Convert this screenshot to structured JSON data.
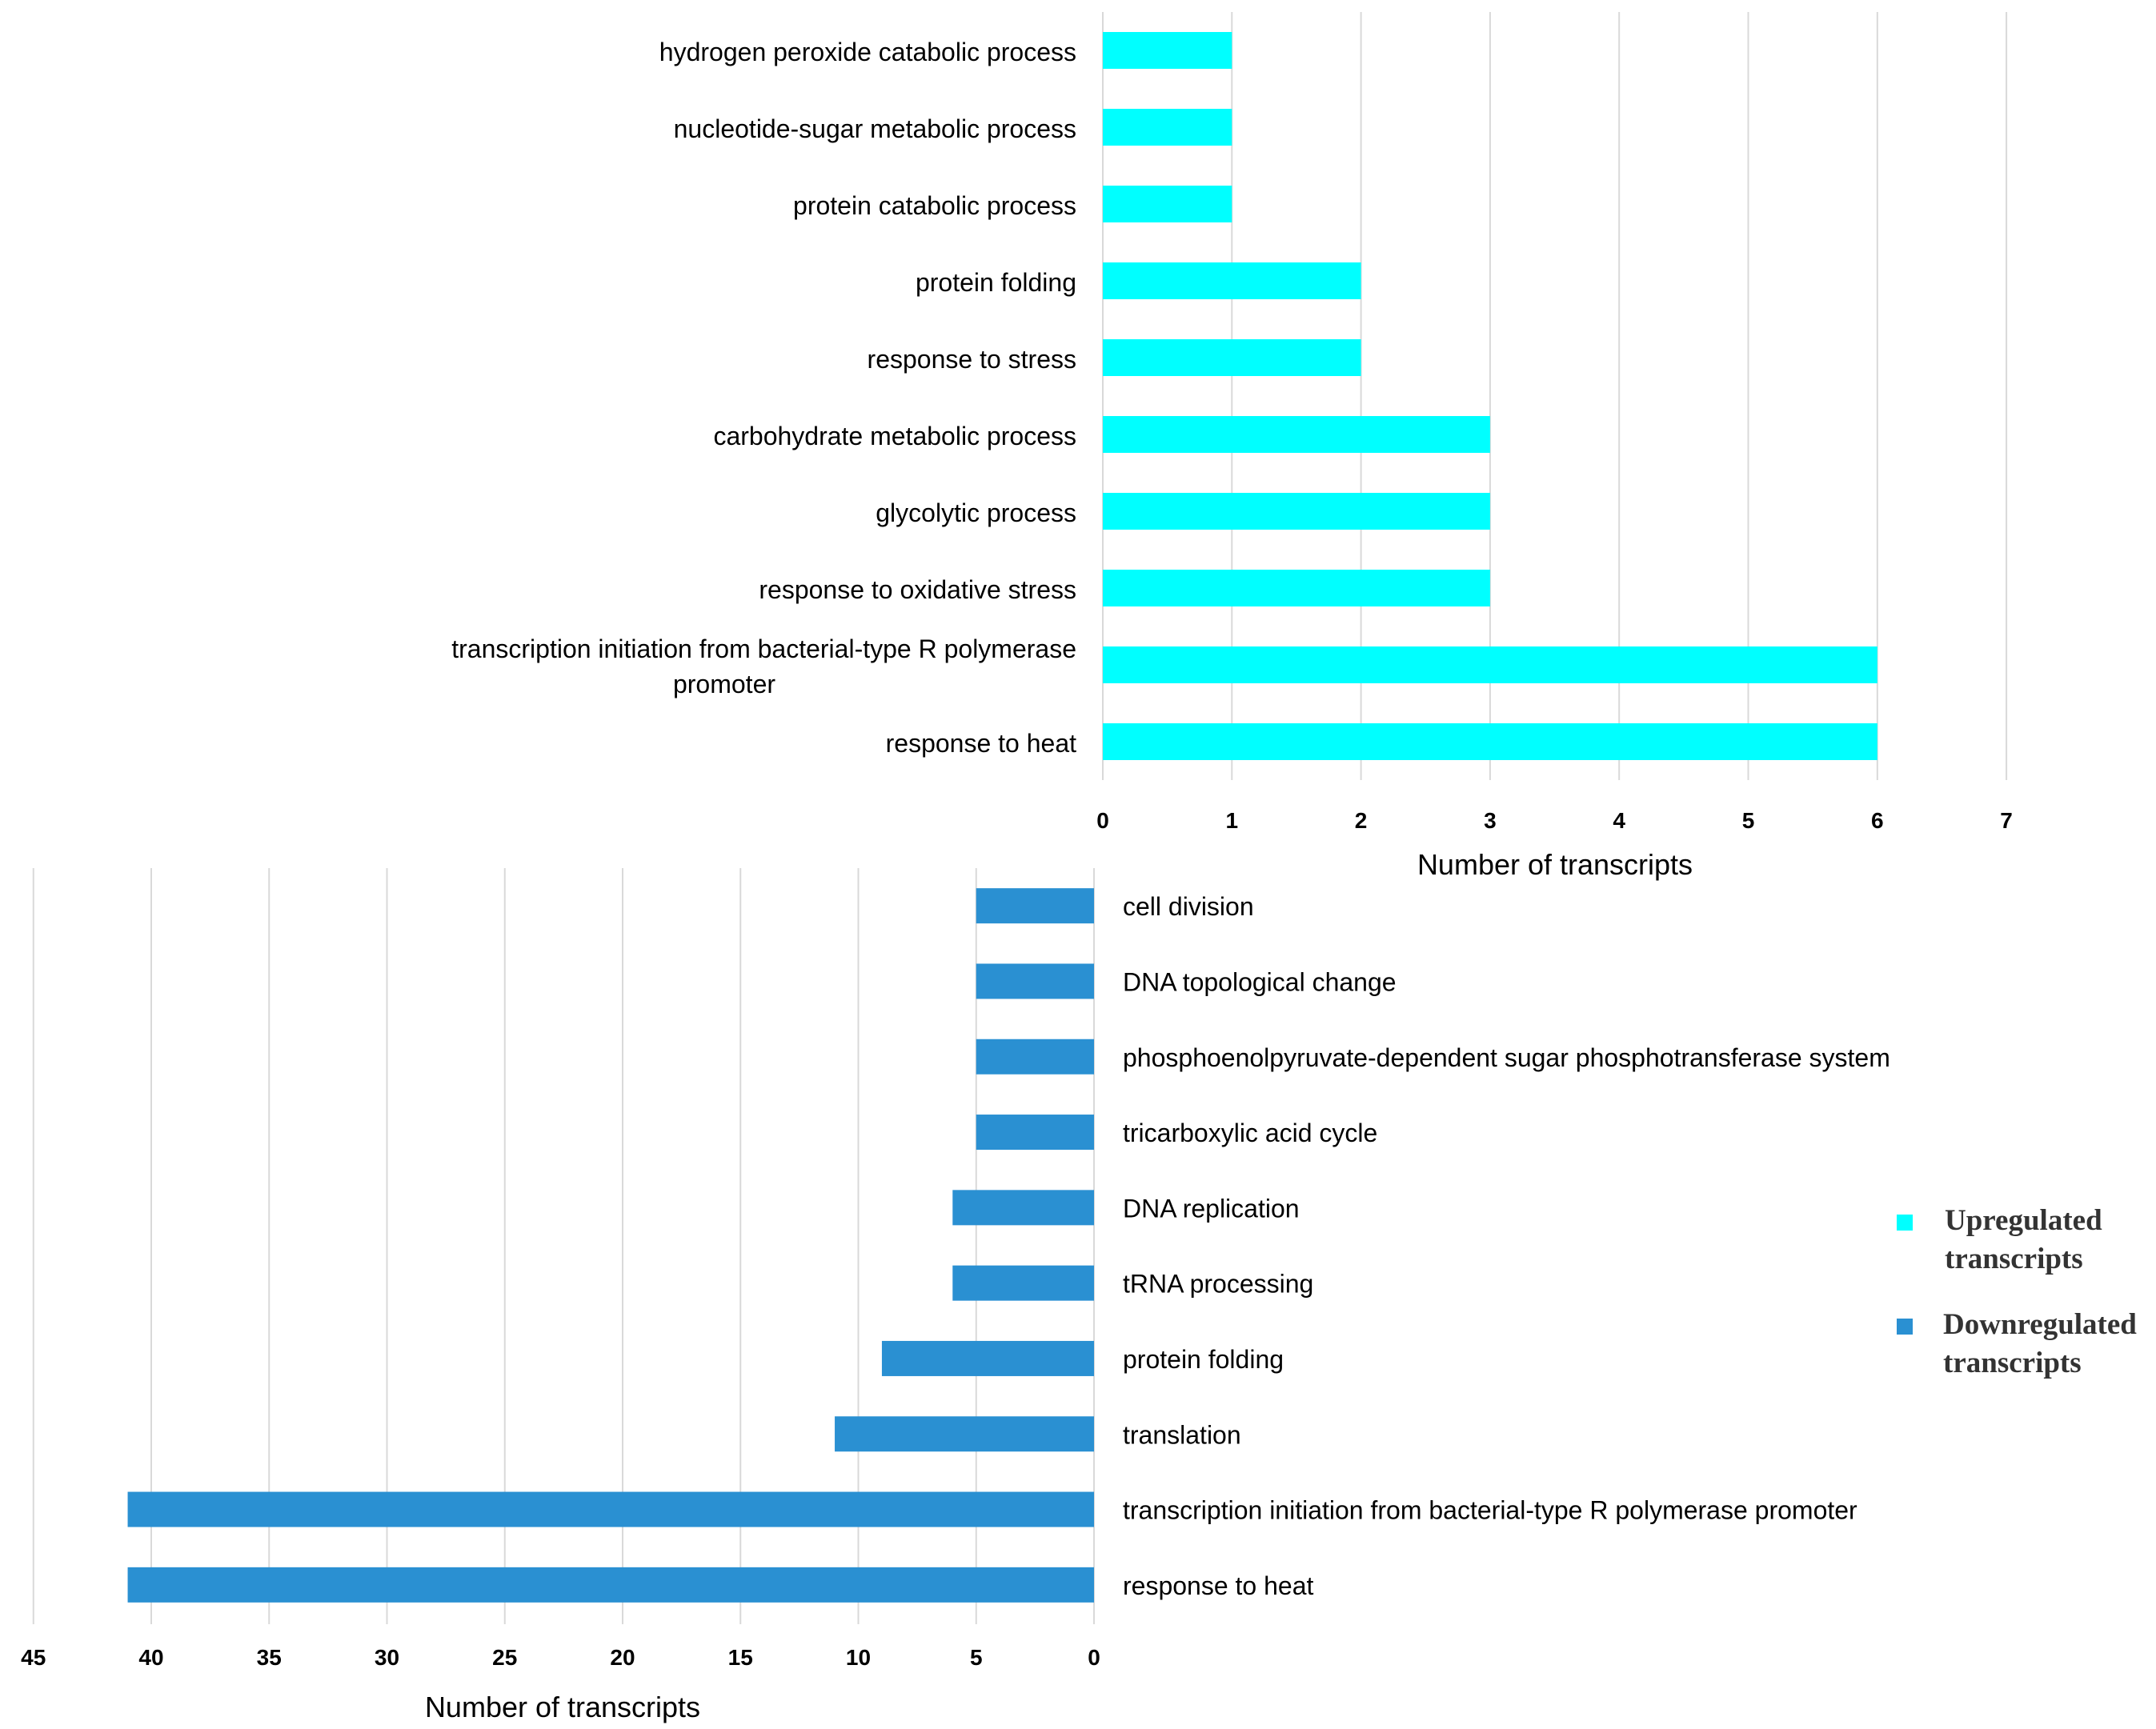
{
  "colors": {
    "up": "#00FFFF",
    "down": "#2A90D2",
    "grid": "#D9D9D9",
    "text": "#000000"
  },
  "chart_data": [
    {
      "type": "bar",
      "orientation": "horizontal",
      "direction": "left-to-right",
      "series_name": "Upregulated transcripts",
      "color": "#00FFFF",
      "categories": [
        "hydrogen peroxide catabolic process",
        "nucleotide-sugar metabolic process",
        "protein catabolic process",
        "protein folding",
        "response to stress",
        "carbohydrate metabolic process",
        "glycolytic process",
        "response to oxidative stress",
        "transcription initiation from bacterial-type R polymerase promoter",
        "response to heat"
      ],
      "category_lines": [
        [
          "hydrogen peroxide catabolic process"
        ],
        [
          "nucleotide-sugar metabolic process"
        ],
        [
          "protein catabolic process"
        ],
        [
          "protein folding"
        ],
        [
          "response to stress"
        ],
        [
          "carbohydrate metabolic process"
        ],
        [
          "glycolytic process"
        ],
        [
          "response to oxidative stress"
        ],
        [
          "transcription initiation from bacterial-type R polymerase",
          "promoter"
        ],
        [
          "response to heat"
        ]
      ],
      "values": [
        1,
        1,
        1,
        2,
        2,
        3,
        3,
        3,
        6,
        6
      ],
      "xlim": [
        0,
        7
      ],
      "xticks": [
        0,
        1,
        2,
        3,
        4,
        5,
        6,
        7
      ],
      "xlabel": "Number of transcripts",
      "grid": true
    },
    {
      "type": "bar",
      "orientation": "horizontal",
      "direction": "right-to-left",
      "series_name": "Downregulated transcripts",
      "color": "#2A90D2",
      "categories": [
        "cell division",
        "DNA topological change",
        "phosphoenolpyruvate-dependent sugar phosphotransferase system",
        "tricarboxylic acid cycle",
        "DNA replication",
        "tRNA processing",
        "protein folding",
        "translation",
        "transcription initiation from bacterial-type R polymerase promoter",
        "response to heat"
      ],
      "values": [
        5,
        5,
        5,
        5,
        6,
        6,
        9,
        11,
        41,
        41
      ],
      "xlim": [
        0,
        45
      ],
      "xticks": [
        45,
        40,
        35,
        30,
        25,
        20,
        15,
        10,
        5,
        0
      ],
      "xlabel": "Number of transcripts",
      "grid": true
    }
  ],
  "legend": {
    "placement": "right",
    "items": [
      {
        "label_lines": [
          "Upregulated",
          "transcripts"
        ],
        "color": "#00FFFF"
      },
      {
        "label_lines": [
          "Downregulated",
          "transcripts"
        ],
        "color": "#2A90D2"
      }
    ]
  }
}
